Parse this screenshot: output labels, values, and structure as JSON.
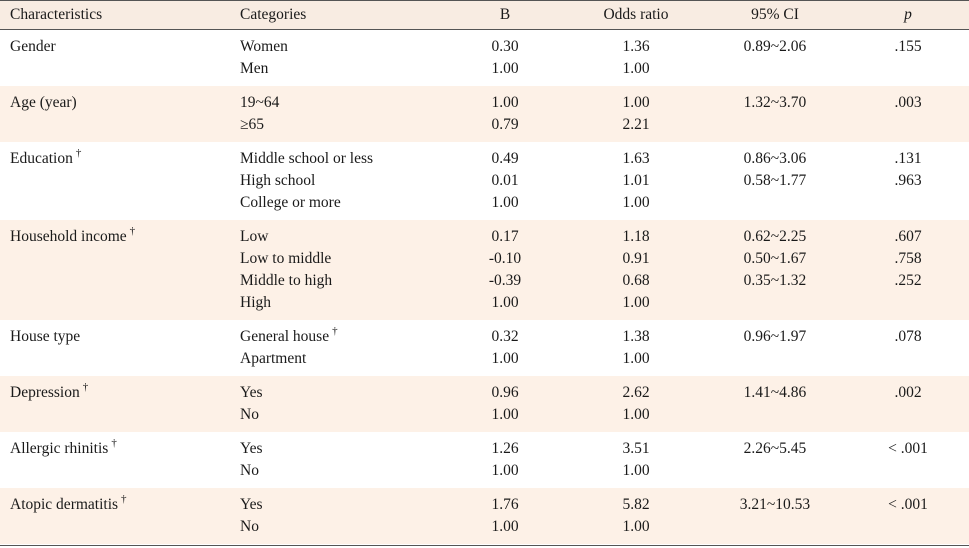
{
  "headers": {
    "characteristics": "Characteristics",
    "categories": "Categories",
    "b": "B",
    "odds_ratio": "Odds ratio",
    "ci": "95% CI",
    "p": "p"
  },
  "dagger": "†",
  "groups": [
    {
      "label": "Gender",
      "dagger": false,
      "rows": [
        {
          "category": "Women",
          "cat_dagger": false,
          "b": "0.30",
          "or": "1.36",
          "ci": "0.89~2.06",
          "p": ".155"
        },
        {
          "category": "Men",
          "cat_dagger": false,
          "b": "1.00",
          "or": "1.00",
          "ci": "",
          "p": ""
        }
      ]
    },
    {
      "label": "Age (year)",
      "dagger": false,
      "rows": [
        {
          "category": "19~64",
          "cat_dagger": false,
          "b": "1.00",
          "or": "1.00",
          "ci": "1.32~3.70",
          "p": ".003"
        },
        {
          "category": "≥65",
          "cat_dagger": false,
          "b": "0.79",
          "or": "2.21",
          "ci": "",
          "p": ""
        }
      ]
    },
    {
      "label": "Education",
      "dagger": true,
      "rows": [
        {
          "category": "Middle school or less",
          "cat_dagger": false,
          "b": "0.49",
          "or": "1.63",
          "ci": "0.86~3.06",
          "p": ".131"
        },
        {
          "category": "High school",
          "cat_dagger": false,
          "b": "0.01",
          "or": "1.01",
          "ci": "0.58~1.77",
          "p": ".963"
        },
        {
          "category": "College or more",
          "cat_dagger": false,
          "b": "1.00",
          "or": "1.00",
          "ci": "",
          "p": ""
        }
      ]
    },
    {
      "label": "Household income",
      "dagger": true,
      "rows": [
        {
          "category": "Low",
          "cat_dagger": false,
          "b": "0.17",
          "or": "1.18",
          "ci": "0.62~2.25",
          "p": ".607"
        },
        {
          "category": "Low to middle",
          "cat_dagger": false,
          "b": "-0.10",
          "or": "0.91",
          "ci": "0.50~1.67",
          "p": ".758"
        },
        {
          "category": "Middle to high",
          "cat_dagger": false,
          "b": "-0.39",
          "or": "0.68",
          "ci": "0.35~1.32",
          "p": ".252"
        },
        {
          "category": "High",
          "cat_dagger": false,
          "b": "1.00",
          "or": "1.00",
          "ci": "",
          "p": ""
        }
      ]
    },
    {
      "label": "House type",
      "dagger": false,
      "rows": [
        {
          "category": "General house",
          "cat_dagger": true,
          "b": "0.32",
          "or": "1.38",
          "ci": "0.96~1.97",
          "p": ".078"
        },
        {
          "category": "Apartment",
          "cat_dagger": false,
          "b": "1.00",
          "or": "1.00",
          "ci": "",
          "p": ""
        }
      ]
    },
    {
      "label": "Depression",
      "dagger": true,
      "rows": [
        {
          "category": "Yes",
          "cat_dagger": false,
          "b": "0.96",
          "or": "2.62",
          "ci": "1.41~4.86",
          "p": ".002"
        },
        {
          "category": "No",
          "cat_dagger": false,
          "b": "1.00",
          "or": "1.00",
          "ci": "",
          "p": ""
        }
      ]
    },
    {
      "label": "Allergic rhinitis",
      "dagger": true,
      "rows": [
        {
          "category": "Yes",
          "cat_dagger": false,
          "b": "1.26",
          "or": "3.51",
          "ci": "2.26~5.45",
          "p": "< .001"
        },
        {
          "category": "No",
          "cat_dagger": false,
          "b": "1.00",
          "or": "1.00",
          "ci": "",
          "p": ""
        }
      ]
    },
    {
      "label": "Atopic dermatitis",
      "dagger": true,
      "rows": [
        {
          "category": "Yes",
          "cat_dagger": false,
          "b": "1.76",
          "or": "5.82",
          "ci": "3.21~10.53",
          "p": "< .001"
        },
        {
          "category": "No",
          "cat_dagger": false,
          "b": "1.00",
          "or": "1.00",
          "ci": "",
          "p": ""
        }
      ]
    }
  ]
}
